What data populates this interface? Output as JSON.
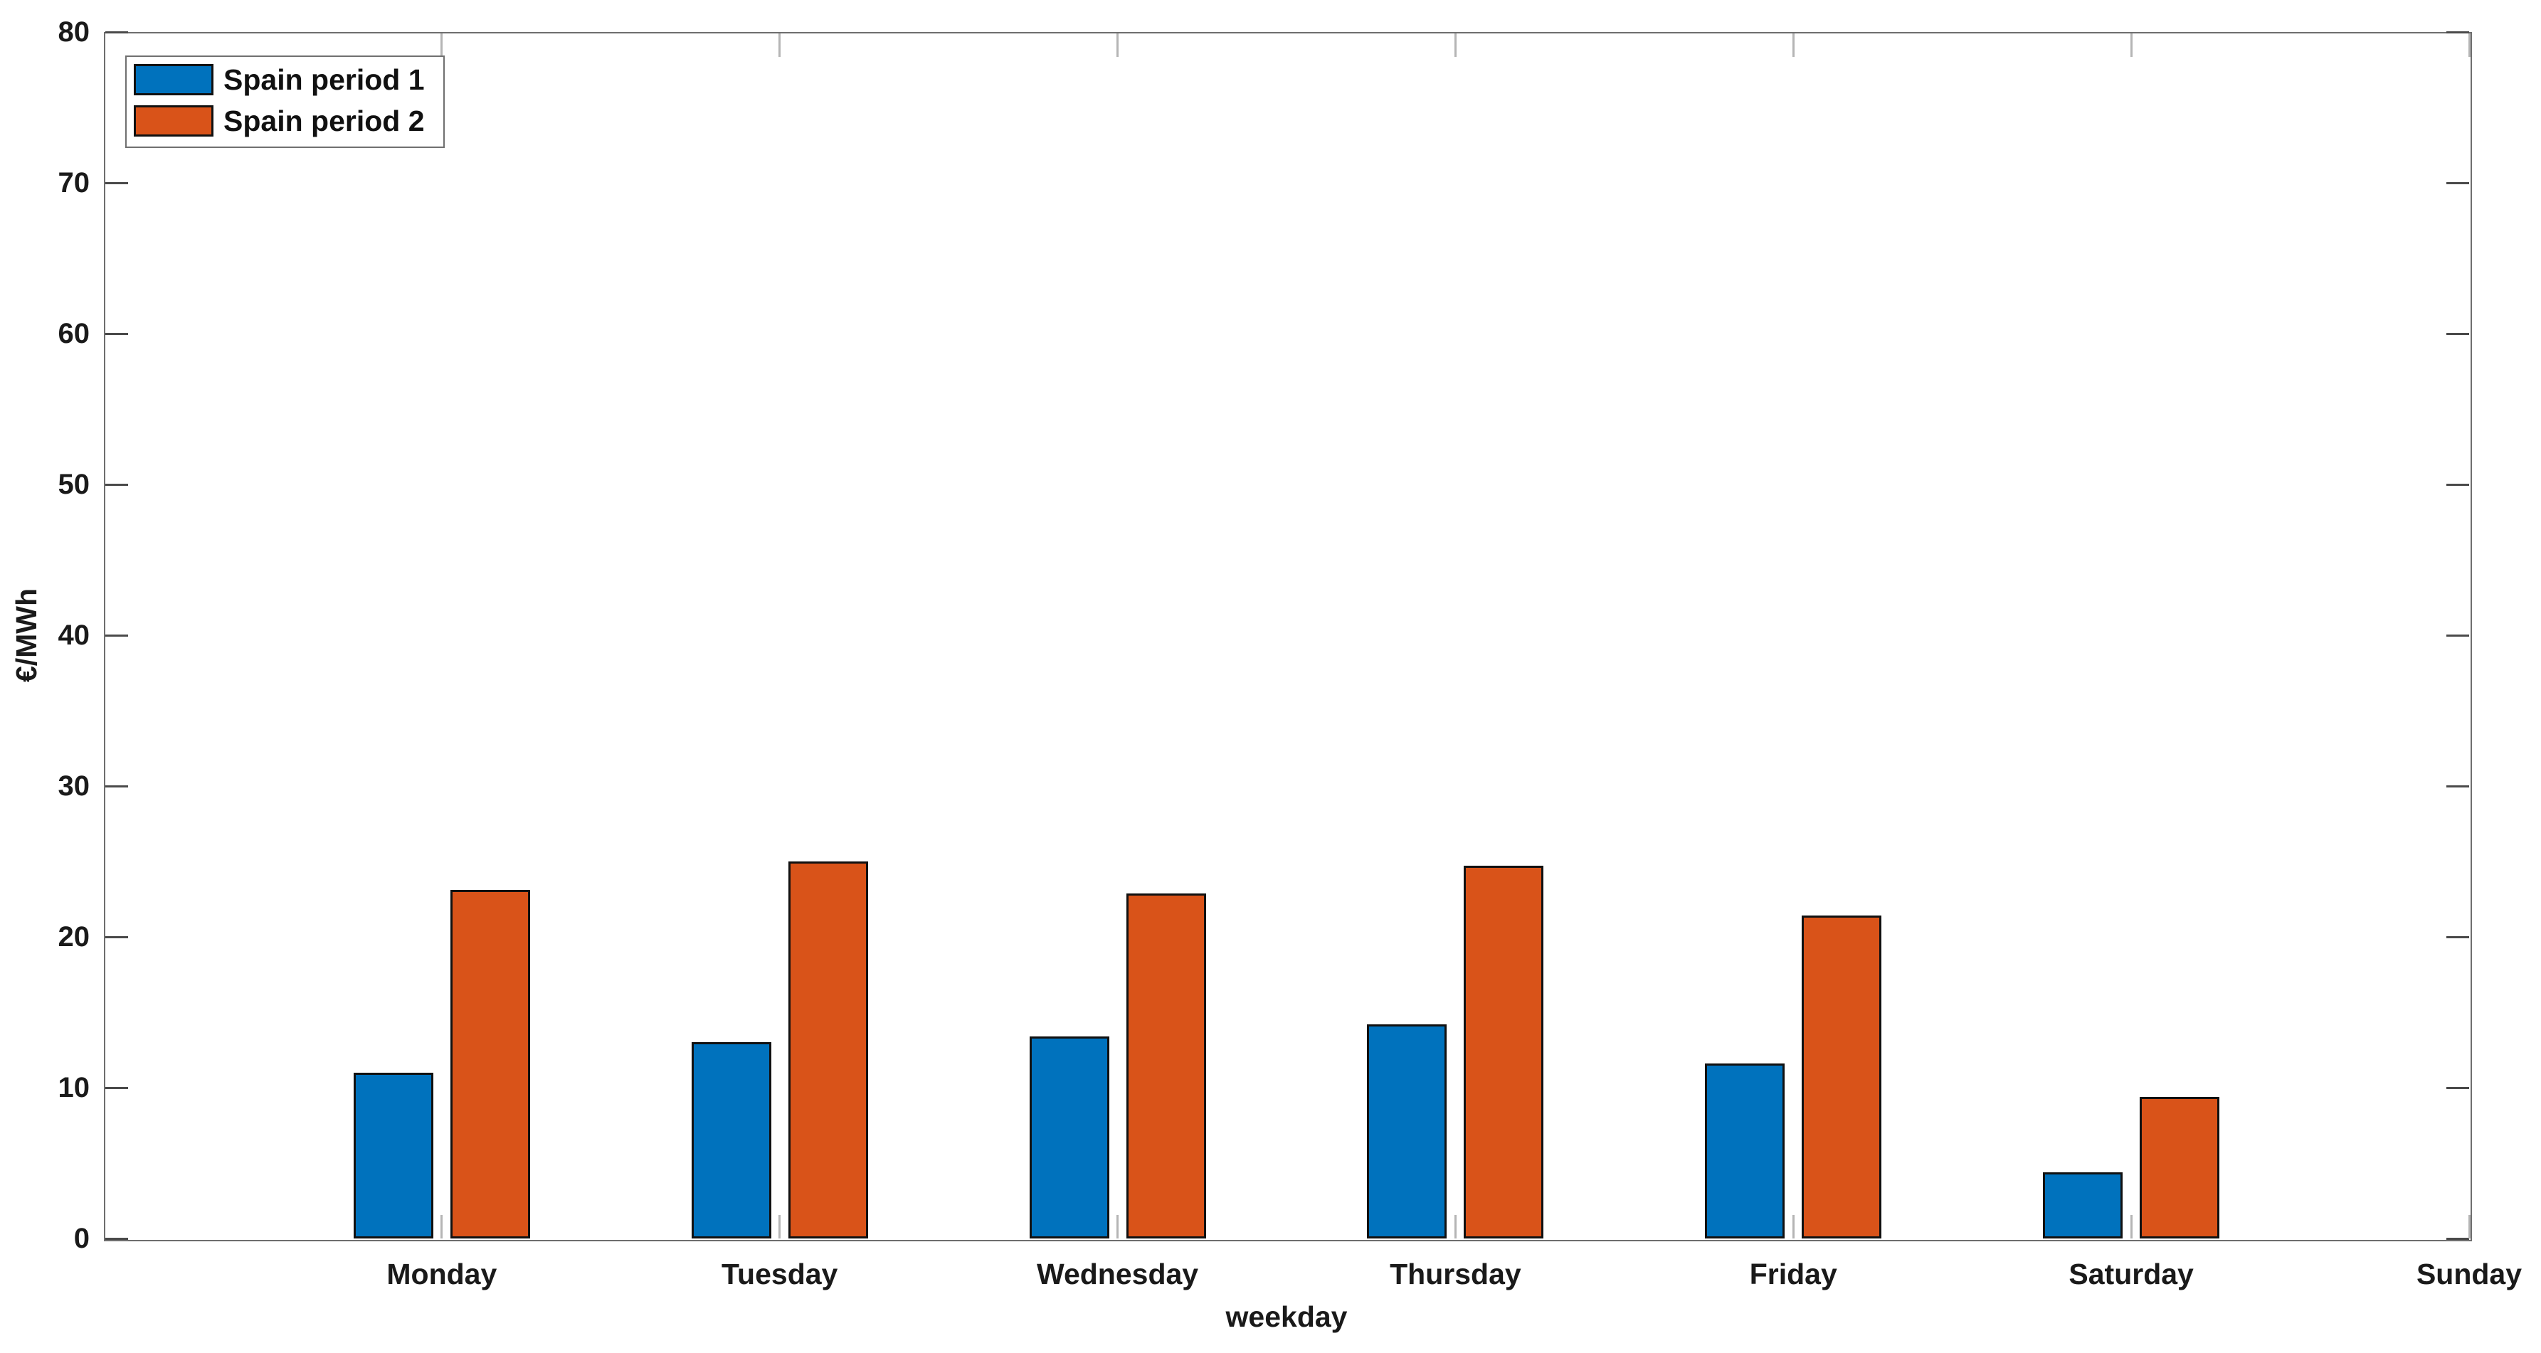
{
  "chart_data": {
    "type": "bar",
    "title": "",
    "xlabel": "weekday",
    "ylabel": "€/MWh",
    "categories": [
      "Monday",
      "Tuesday",
      "Wednesday",
      "Thursday",
      "Friday",
      "Saturday",
      "Sunday"
    ],
    "series": [
      {
        "name": "Spain period 1",
        "color": "#0072BD",
        "values": [
          11.0,
          13.0,
          13.4,
          14.2,
          11.6,
          4.4,
          0
        ]
      },
      {
        "name": "Spain period 2",
        "color": "#D95319",
        "values": [
          23.1,
          25.0,
          22.9,
          24.7,
          21.4,
          9.4,
          0
        ]
      }
    ],
    "ylim": [
      0,
      80
    ],
    "yticks": [
      0,
      10,
      20,
      30,
      40,
      50,
      60,
      70,
      80
    ],
    "grid": false,
    "legend_position": "top-left",
    "bar_edge_color": "#111111",
    "axis_box_color": "#6e6e6e"
  }
}
